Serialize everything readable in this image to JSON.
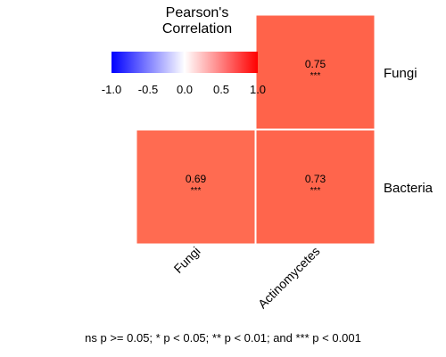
{
  "chart_data": {
    "type": "heatmap",
    "title": "",
    "legend": {
      "title_line1": "Pearson's",
      "title_line2": "Correlation",
      "ticks": [
        "-1.0",
        "-0.5",
        "0.0",
        "0.5",
        "1.0"
      ],
      "tick_values": [
        -1.0,
        -0.5,
        0.0,
        0.5,
        1.0
      ],
      "range": [
        -1.0,
        1.0
      ],
      "colors": {
        "low": "#0000FF",
        "mid": "#FFFFFF",
        "high": "#FF0000"
      },
      "placement": "top"
    },
    "x_categories": [
      "Fungi",
      "Actinomycetes"
    ],
    "y_categories": [
      "Fungi",
      "Bacteria"
    ],
    "cells": [
      {
        "x": "Actinomycetes",
        "y": "Fungi",
        "value": 0.75,
        "label": "0.75",
        "significance": "***",
        "color": "#FF634A"
      },
      {
        "x": "Fungi",
        "y": "Bacteria",
        "value": 0.69,
        "label": "0.69",
        "significance": "***",
        "color": "#FF6B51"
      },
      {
        "x": "Actinomycetes",
        "y": "Bacteria",
        "value": 0.73,
        "label": "0.73",
        "significance": "***",
        "color": "#FF654C"
      }
    ],
    "footnote": "ns p >= 0.05; * p < 0.05; ** p < 0.01; and *** p < 0.001"
  }
}
